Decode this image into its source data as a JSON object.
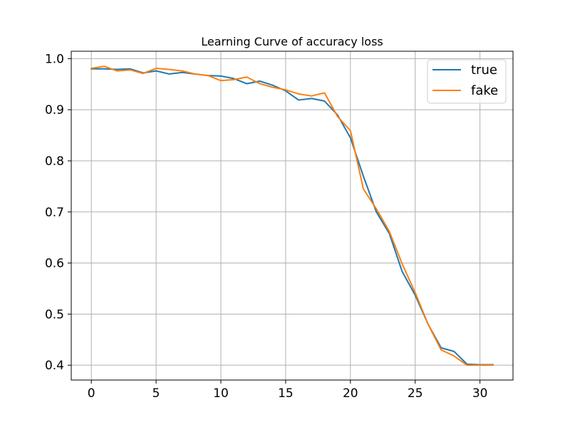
{
  "chart_data": {
    "type": "line",
    "title": "Learning Curve of accuracy loss",
    "xlabel": "",
    "ylabel": "",
    "xlim": [
      -1.55,
      32.55
    ],
    "ylim": [
      0.371,
      1.0145
    ],
    "xticks": [
      0,
      5,
      10,
      15,
      20,
      25,
      30
    ],
    "yticks": [
      0.4,
      0.5,
      0.6,
      0.7,
      0.8,
      0.9,
      1.0
    ],
    "ytick_labels": [
      "0.4",
      "0.5",
      "0.6",
      "0.7",
      "0.8",
      "0.9",
      "1.0"
    ],
    "grid": true,
    "legend_position": "top-right",
    "x": [
      0,
      1,
      2,
      3,
      4,
      5,
      6,
      7,
      8,
      9,
      10,
      11,
      12,
      13,
      14,
      15,
      16,
      17,
      18,
      19,
      20,
      21,
      22,
      23,
      24,
      25,
      26,
      27,
      28,
      29,
      30,
      31
    ],
    "series": [
      {
        "name": "true",
        "color": "#1f77b4",
        "values": [
          0.98,
          0.98,
          0.979,
          0.98,
          0.972,
          0.976,
          0.97,
          0.973,
          0.97,
          0.967,
          0.966,
          0.961,
          0.951,
          0.956,
          0.948,
          0.937,
          0.919,
          0.922,
          0.917,
          0.89,
          0.845,
          0.77,
          0.7,
          0.658,
          0.583,
          0.537,
          0.48,
          0.434,
          0.427,
          0.402,
          0.401,
          0.401
        ]
      },
      {
        "name": "fake",
        "color": "#ff7f0e",
        "values": [
          0.981,
          0.985,
          0.976,
          0.978,
          0.971,
          0.981,
          0.979,
          0.976,
          0.97,
          0.967,
          0.957,
          0.959,
          0.964,
          0.951,
          0.944,
          0.939,
          0.931,
          0.927,
          0.933,
          0.887,
          0.859,
          0.745,
          0.706,
          0.662,
          0.598,
          0.542,
          0.48,
          0.43,
          0.418,
          0.4,
          0.4,
          0.4
        ]
      }
    ]
  }
}
